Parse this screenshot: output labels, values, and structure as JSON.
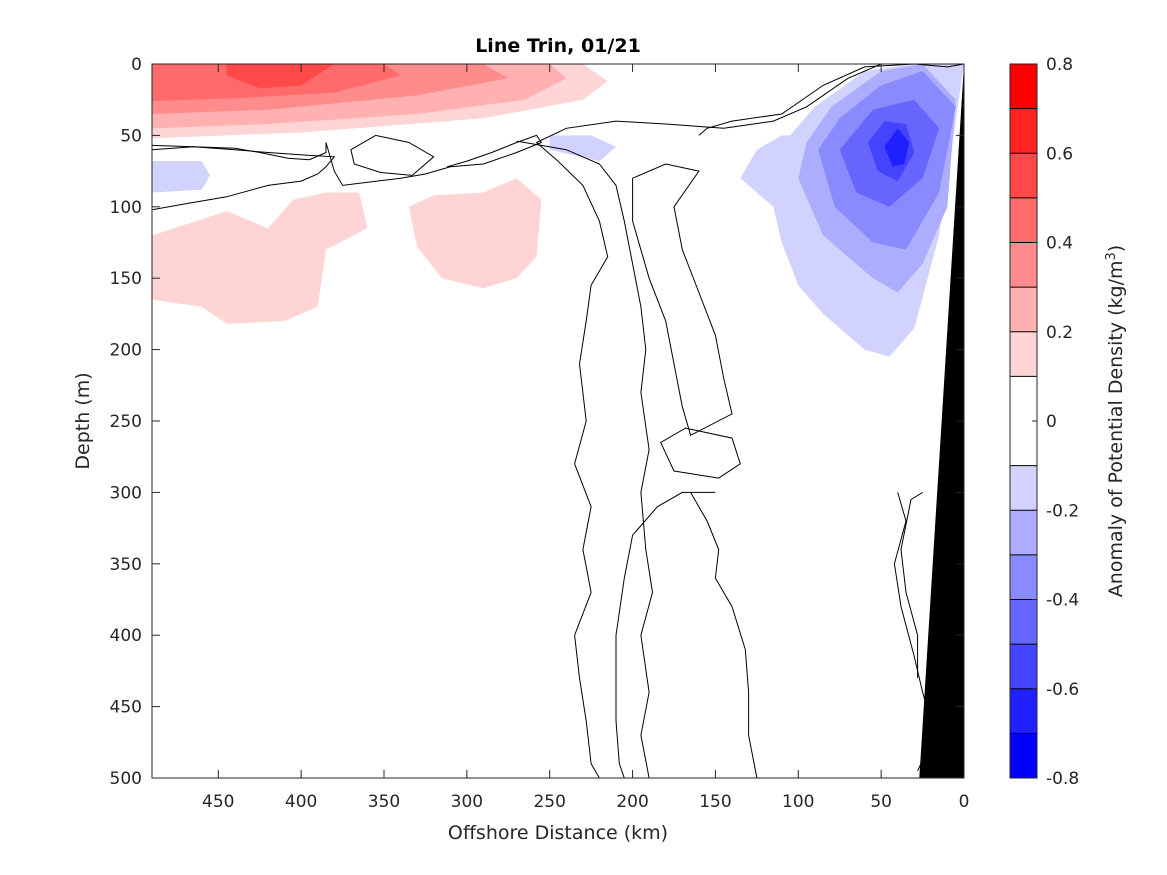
{
  "chart_data": {
    "type": "heatmap",
    "subtype": "filled-contour-section",
    "title": "Line Trin, 01/21",
    "xlabel": "Offshore Distance (km)",
    "ylabel": "Depth (m)",
    "xlim": [
      490,
      0
    ],
    "x_reversed": true,
    "ylim": [
      500,
      0
    ],
    "y_reversed": true,
    "xticks": [
      450,
      400,
      350,
      300,
      250,
      200,
      150,
      100,
      50,
      0
    ],
    "yticks": [
      0,
      50,
      100,
      150,
      200,
      250,
      300,
      350,
      400,
      450,
      500
    ],
    "colorbar": {
      "label_prefix": "Anomaly of Potential Density (kg/m",
      "label_sup": "3",
      "label_suffix": ")",
      "range": [
        -0.8,
        0.8
      ],
      "ticks": [
        0.8,
        0.6,
        0.4,
        0.2,
        0,
        -0.2,
        -0.4,
        -0.6,
        -0.8
      ],
      "levels": [
        -0.8,
        -0.7,
        -0.6,
        -0.5,
        -0.4,
        -0.3,
        -0.2,
        -0.1,
        0.1,
        0.2,
        0.3,
        0.4,
        0.5,
        0.6,
        0.7,
        0.8
      ],
      "colors": [
        "#0000ff",
        "#2020ff",
        "#4444ff",
        "#6666ff",
        "#8a8aff",
        "#adadff",
        "#d2d2ff",
        "#ffffff",
        "#ffd4d4",
        "#ffb0b0",
        "#ff8c8c",
        "#ff6a6a",
        "#ff4848",
        "#ff2424",
        "#ff0000"
      ]
    },
    "regions": [
      {
        "level": 0.1,
        "color": "#ffd4d4",
        "points": [
          [
            490,
            0
          ],
          [
            230,
            0
          ],
          [
            215,
            12
          ],
          [
            230,
            25
          ],
          [
            290,
            38
          ],
          [
            400,
            48
          ],
          [
            490,
            52
          ]
        ]
      },
      {
        "level": 0.2,
        "color": "#ffb0b0",
        "points": [
          [
            490,
            0
          ],
          [
            250,
            0
          ],
          [
            240,
            10
          ],
          [
            265,
            25
          ],
          [
            330,
            35
          ],
          [
            420,
            42
          ],
          [
            490,
            45
          ]
        ]
      },
      {
        "level": 0.3,
        "color": "#ff8c8c",
        "points": [
          [
            490,
            0
          ],
          [
            290,
            0
          ],
          [
            275,
            10
          ],
          [
            330,
            22
          ],
          [
            420,
            32
          ],
          [
            490,
            35
          ]
        ]
      },
      {
        "level": 0.4,
        "color": "#ff6a6a",
        "points": [
          [
            490,
            0
          ],
          [
            350,
            0
          ],
          [
            340,
            8
          ],
          [
            380,
            20
          ],
          [
            440,
            24
          ],
          [
            490,
            26
          ]
        ]
      },
      {
        "level": 0.5,
        "color": "#ff4848",
        "points": [
          [
            445,
            0
          ],
          [
            380,
            0
          ],
          [
            400,
            15
          ],
          [
            425,
            17
          ],
          [
            445,
            8
          ]
        ]
      },
      {
        "level": 0.1,
        "color": "#ffd4d4",
        "points": [
          [
            490,
            120
          ],
          [
            445,
            103
          ],
          [
            420,
            115
          ],
          [
            405,
            95
          ],
          [
            385,
            90
          ],
          [
            365,
            90
          ],
          [
            360,
            115
          ],
          [
            385,
            130
          ],
          [
            390,
            170
          ],
          [
            410,
            180
          ],
          [
            445,
            182
          ],
          [
            460,
            170
          ],
          [
            490,
            165
          ]
        ]
      },
      {
        "level": 0.1,
        "color": "#ffd4d4",
        "points": [
          [
            335,
            100
          ],
          [
            320,
            92
          ],
          [
            290,
            90
          ],
          [
            270,
            80
          ],
          [
            255,
            95
          ],
          [
            258,
            135
          ],
          [
            270,
            150
          ],
          [
            290,
            157
          ],
          [
            315,
            150
          ],
          [
            330,
            128
          ]
        ]
      },
      {
        "level": -0.1,
        "color": "#d2d2ff",
        "points": [
          [
            490,
            68
          ],
          [
            460,
            68
          ],
          [
            455,
            78
          ],
          [
            460,
            88
          ],
          [
            490,
            90
          ]
        ]
      },
      {
        "level": -0.1,
        "color": "#d2d2ff",
        "points": [
          [
            225,
            50
          ],
          [
            210,
            58
          ],
          [
            220,
            68
          ],
          [
            250,
            60
          ],
          [
            250,
            50
          ]
        ]
      },
      {
        "level": -0.1,
        "color": "#d2d2ff",
        "points": [
          [
            110,
            50
          ],
          [
            125,
            60
          ],
          [
            135,
            80
          ],
          [
            115,
            100
          ],
          [
            110,
            125
          ],
          [
            100,
            155
          ],
          [
            85,
            175
          ],
          [
            60,
            200
          ],
          [
            45,
            205
          ],
          [
            30,
            185
          ],
          [
            15,
            120
          ],
          [
            0,
            0
          ],
          [
            30,
            0
          ],
          [
            60,
            5
          ],
          [
            90,
            30
          ],
          [
            105,
            50
          ]
        ]
      },
      {
        "level": -0.2,
        "color": "#adadff",
        "points": [
          [
            95,
            55
          ],
          [
            100,
            80
          ],
          [
            85,
            120
          ],
          [
            55,
            150
          ],
          [
            40,
            160
          ],
          [
            25,
            140
          ],
          [
            10,
            100
          ],
          [
            5,
            25
          ],
          [
            25,
            0
          ],
          [
            50,
            5
          ],
          [
            80,
            30
          ]
        ]
      },
      {
        "level": -0.3,
        "color": "#8a8aff",
        "points": [
          [
            88,
            60
          ],
          [
            78,
            100
          ],
          [
            55,
            125
          ],
          [
            35,
            130
          ],
          [
            15,
            90
          ],
          [
            5,
            30
          ],
          [
            25,
            5
          ],
          [
            50,
            15
          ],
          [
            75,
            38
          ]
        ]
      },
      {
        "level": -0.4,
        "color": "#6666ff",
        "points": [
          [
            75,
            60
          ],
          [
            65,
            90
          ],
          [
            45,
            100
          ],
          [
            25,
            80
          ],
          [
            15,
            45
          ],
          [
            30,
            25
          ],
          [
            55,
            32
          ]
        ]
      },
      {
        "level": -0.5,
        "color": "#4444ff",
        "points": [
          [
            58,
            55
          ],
          [
            52,
            75
          ],
          [
            40,
            82
          ],
          [
            30,
            62
          ],
          [
            35,
            42
          ],
          [
            48,
            40
          ]
        ]
      },
      {
        "level": -0.6,
        "color": "#2020ff",
        "points": [
          [
            48,
            58
          ],
          [
            43,
            72
          ],
          [
            36,
            70
          ],
          [
            33,
            55
          ],
          [
            40,
            45
          ]
        ]
      }
    ],
    "zero_contours": [
      {
        "closed": false,
        "points": [
          [
            490,
            60
          ],
          [
            465,
            58
          ],
          [
            440,
            59
          ],
          [
            425,
            62
          ],
          [
            408,
            66
          ],
          [
            395,
            67
          ],
          [
            385,
            62
          ],
          [
            385,
            55
          ],
          [
            380,
            75
          ],
          [
            375,
            85
          ],
          [
            340,
            80
          ],
          [
            325,
            77
          ],
          [
            310,
            72
          ],
          [
            290,
            70
          ],
          [
            270,
            62
          ],
          [
            255,
            55
          ],
          [
            258,
            50
          ],
          [
            270,
            55
          ],
          [
            285,
            62
          ],
          [
            300,
            68
          ],
          [
            312,
            72
          ]
        ]
      },
      {
        "closed": true,
        "points": [
          [
            370,
            60
          ],
          [
            355,
            50
          ],
          [
            335,
            55
          ],
          [
            320,
            65
          ],
          [
            333,
            78
          ],
          [
            352,
            76
          ],
          [
            368,
            70
          ]
        ]
      },
      {
        "closed": false,
        "points": [
          [
            490,
            102
          ],
          [
            470,
            98
          ],
          [
            445,
            93
          ],
          [
            420,
            85
          ],
          [
            400,
            82
          ],
          [
            390,
            77
          ],
          [
            385,
            72
          ],
          [
            380,
            65
          ],
          [
            395,
            64
          ],
          [
            420,
            62
          ],
          [
            440,
            60
          ],
          [
            465,
            58
          ],
          [
            490,
            57
          ]
        ]
      },
      {
        "closed": false,
        "points": [
          [
            50,
            0
          ],
          [
            70,
            10
          ],
          [
            95,
            30
          ],
          [
            115,
            40
          ],
          [
            145,
            45
          ],
          [
            180,
            42
          ],
          [
            210,
            40
          ],
          [
            240,
            45
          ],
          [
            258,
            55
          ],
          [
            245,
            68
          ],
          [
            230,
            85
          ],
          [
            220,
            110
          ],
          [
            215,
            135
          ],
          [
            225,
            155
          ],
          [
            228,
            180
          ],
          [
            232,
            210
          ],
          [
            228,
            250
          ],
          [
            235,
            280
          ],
          [
            225,
            310
          ],
          [
            230,
            340
          ],
          [
            225,
            370
          ],
          [
            235,
            400
          ],
          [
            232,
            430
          ],
          [
            228,
            460
          ],
          [
            225,
            490
          ],
          [
            220,
            500
          ]
        ]
      },
      {
        "closed": false,
        "points": [
          [
            190,
            500
          ],
          [
            195,
            470
          ],
          [
            190,
            440
          ],
          [
            195,
            400
          ],
          [
            188,
            370
          ],
          [
            192,
            340
          ],
          [
            195,
            300
          ],
          [
            190,
            270
          ],
          [
            195,
            230
          ],
          [
            192,
            200
          ],
          [
            195,
            170
          ],
          [
            200,
            140
          ],
          [
            205,
            110
          ],
          [
            210,
            85
          ],
          [
            220,
            70
          ],
          [
            240,
            60
          ],
          [
            255,
            57
          ],
          [
            270,
            54
          ]
        ]
      },
      {
        "closed": true,
        "points": [
          [
            175,
            100
          ],
          [
            160,
            75
          ],
          [
            180,
            70
          ],
          [
            200,
            80
          ],
          [
            200,
            110
          ],
          [
            190,
            150
          ],
          [
            180,
            180
          ],
          [
            175,
            210
          ],
          [
            170,
            240
          ],
          [
            165,
            260
          ],
          [
            140,
            245
          ],
          [
            145,
            220
          ],
          [
            150,
            190
          ],
          [
            160,
            160
          ],
          [
            170,
            130
          ]
        ]
      },
      {
        "closed": true,
        "points": [
          [
            168,
            255
          ],
          [
            140,
            262
          ],
          [
            135,
            280
          ],
          [
            148,
            290
          ],
          [
            175,
            285
          ],
          [
            183,
            265
          ]
        ]
      },
      {
        "closed": false,
        "points": [
          [
            150,
            300
          ],
          [
            170,
            300
          ],
          [
            185,
            310
          ],
          [
            200,
            330
          ],
          [
            205,
            360
          ],
          [
            210,
            400
          ],
          [
            210,
            430
          ],
          [
            210,
            460
          ],
          [
            208,
            490
          ],
          [
            205,
            500
          ]
        ]
      },
      {
        "closed": false,
        "points": [
          [
            125,
            500
          ],
          [
            130,
            470
          ],
          [
            130,
            440
          ],
          [
            132,
            410
          ],
          [
            140,
            380
          ],
          [
            150,
            360
          ],
          [
            148,
            340
          ],
          [
            155,
            320
          ],
          [
            165,
            300
          ]
        ]
      },
      {
        "closed": false,
        "points": [
          [
            0,
            0
          ],
          [
            10,
            2
          ],
          [
            30,
            0
          ],
          [
            60,
            2
          ],
          [
            85,
            15
          ],
          [
            110,
            35
          ],
          [
            140,
            40
          ],
          [
            155,
            45
          ],
          [
            160,
            50
          ]
        ]
      },
      {
        "closed": false,
        "points": [
          [
            40,
            300
          ],
          [
            35,
            320
          ],
          [
            42,
            350
          ],
          [
            38,
            380
          ],
          [
            30,
            415
          ],
          [
            25,
            440
          ],
          [
            20,
            460
          ],
          [
            22,
            480
          ],
          [
            28,
            495
          ]
        ]
      },
      {
        "closed": false,
        "points": [
          [
            25,
            300
          ],
          [
            32,
            305
          ],
          [
            38,
            340
          ],
          [
            35,
            370
          ],
          [
            28,
            400
          ],
          [
            28,
            430
          ]
        ]
      }
    ],
    "land_mask": {
      "color": "#000000",
      "points": [
        [
          0,
          0
        ],
        [
          0,
          500
        ],
        [
          27,
          500
        ]
      ]
    }
  }
}
